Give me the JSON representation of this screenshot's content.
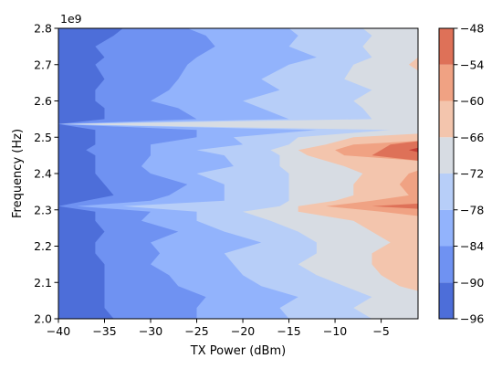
{
  "chart_data": {
    "type": "heatmap",
    "subtype": "filled-contour",
    "xlabel": "TX Power (dBm)",
    "ylabel": "Frequency (Hz)",
    "xlim": [
      -40,
      -1
    ],
    "ylim": [
      2.0,
      2.8
    ],
    "y_offset_text": "1e9",
    "x_ticks": [
      -40,
      -35,
      -30,
      -25,
      -20,
      -15,
      -10,
      -5
    ],
    "x_tick_labels": [
      "−40",
      "−35",
      "−30",
      "−25",
      "−20",
      "−15",
      "−10",
      "−5"
    ],
    "y_ticks": [
      2.0,
      2.1,
      2.2,
      2.3,
      2.4,
      2.5,
      2.6,
      2.7,
      2.8
    ],
    "y_tick_labels": [
      "2.0",
      "2.1",
      "2.2",
      "2.3",
      "2.4",
      "2.5",
      "2.6",
      "2.7",
      "2.8"
    ],
    "levels": [
      -96,
      -90,
      -84,
      -78,
      -72,
      -66,
      -60,
      -54,
      -48
    ],
    "level_labels": [
      "−96",
      "−90",
      "−84",
      "−78",
      "−72",
      "−66",
      "−60",
      "−54",
      "−48"
    ],
    "band_colors": [
      "#4d6ed9",
      "#6f92f2",
      "#92b3fc",
      "#b7cef8",
      "#d7dce3",
      "#f3c5ad",
      "#f0a283",
      "#de7158",
      "#c43d34"
    ],
    "colorbar": {
      "position": "right",
      "min": -96,
      "max": -48
    },
    "grid": false,
    "rows": [
      {
        "y": 2.8,
        "bounds": [
          -33,
          -26,
          -15,
          -7
        ]
      },
      {
        "y": 2.78,
        "bounds": [
          -34,
          -24,
          -14,
          -6
        ]
      },
      {
        "y": 2.75,
        "bounds": [
          -36,
          -23,
          -15,
          -7,
          -1
        ]
      },
      {
        "y": 2.72,
        "bounds": [
          -35,
          -25,
          -12,
          -6,
          -1
        ]
      },
      {
        "y": 2.7,
        "bounds": [
          -36,
          -26,
          -15,
          -8,
          -2
        ]
      },
      {
        "y": 2.66,
        "bounds": [
          -35,
          -27,
          -18,
          -9
        ]
      },
      {
        "y": 2.63,
        "bounds": [
          -36,
          -28,
          -16,
          -6
        ]
      },
      {
        "y": 2.6,
        "bounds": [
          -36,
          -30,
          -20,
          -8
        ]
      },
      {
        "y": 2.58,
        "bounds": [
          -35,
          -27,
          -18,
          -7
        ]
      },
      {
        "y": 2.55,
        "bounds": [
          -35,
          -25,
          -15,
          -6
        ]
      },
      {
        "y": 2.536,
        "bounds": [
          -40,
          -40,
          -40,
          -40
        ]
      },
      {
        "y": 2.52,
        "bounds": [
          -36,
          -25,
          -12,
          -4
        ]
      },
      {
        "y": 2.5,
        "bounds": [
          -36,
          -25,
          -21,
          -14,
          -8
        ]
      },
      {
        "y": 2.48,
        "bounds": [
          -36,
          -30,
          -20,
          -15,
          -11,
          -8,
          -4
        ]
      },
      {
        "y": 2.465,
        "bounds": [
          -37,
          -30,
          -25,
          -17,
          -14,
          -10,
          -5,
          -2
        ]
      },
      {
        "y": 2.45,
        "bounds": [
          -36,
          -30,
          -22,
          -16,
          -13,
          -9,
          -6
        ]
      },
      {
        "y": 2.42,
        "bounds": [
          -36,
          -31,
          -21,
          -16,
          -9
        ]
      },
      {
        "y": 2.4,
        "bounds": [
          -36,
          -30,
          -25,
          -15,
          -7,
          -2
        ]
      },
      {
        "y": 2.37,
        "bounds": [
          -35,
          -26,
          -22,
          -15,
          -8,
          -3
        ]
      },
      {
        "y": 2.34,
        "bounds": [
          -34,
          -28,
          -22,
          -15,
          -8,
          -2
        ]
      },
      {
        "y": 2.325,
        "bounds": [
          -37,
          -30,
          -22,
          -15,
          -10,
          -6
        ]
      },
      {
        "y": 2.31,
        "bounds": [
          -40,
          -38,
          -33,
          -16,
          -14,
          -11,
          -6
        ]
      },
      {
        "y": 2.295,
        "bounds": [
          -36,
          -30,
          -25,
          -20,
          -14,
          -5
        ]
      },
      {
        "y": 2.27,
        "bounds": [
          -36,
          -31,
          -25,
          -17,
          -8
        ]
      },
      {
        "y": 2.24,
        "bounds": [
          -35,
          -27,
          -22,
          -14,
          -6
        ]
      },
      {
        "y": 2.21,
        "bounds": [
          -36,
          -30,
          -18,
          -12,
          -4
        ]
      },
      {
        "y": 2.18,
        "bounds": [
          -36,
          -29,
          -22,
          -12,
          -6
        ]
      },
      {
        "y": 2.15,
        "bounds": [
          -35,
          -30,
          -21,
          -14,
          -6
        ]
      },
      {
        "y": 2.12,
        "bounds": [
          -35,
          -28,
          -20,
          -12,
          -5
        ]
      },
      {
        "y": 2.09,
        "bounds": [
          -35,
          -27,
          -18,
          -9,
          -3
        ]
      },
      {
        "y": 2.06,
        "bounds": [
          -35,
          -24,
          -14,
          -6
        ]
      },
      {
        "y": 2.03,
        "bounds": [
          -35,
          -25,
          -16,
          -8
        ]
      },
      {
        "y": 2.0,
        "bounds": [
          -34,
          -25,
          -15,
          -6
        ]
      }
    ]
  }
}
